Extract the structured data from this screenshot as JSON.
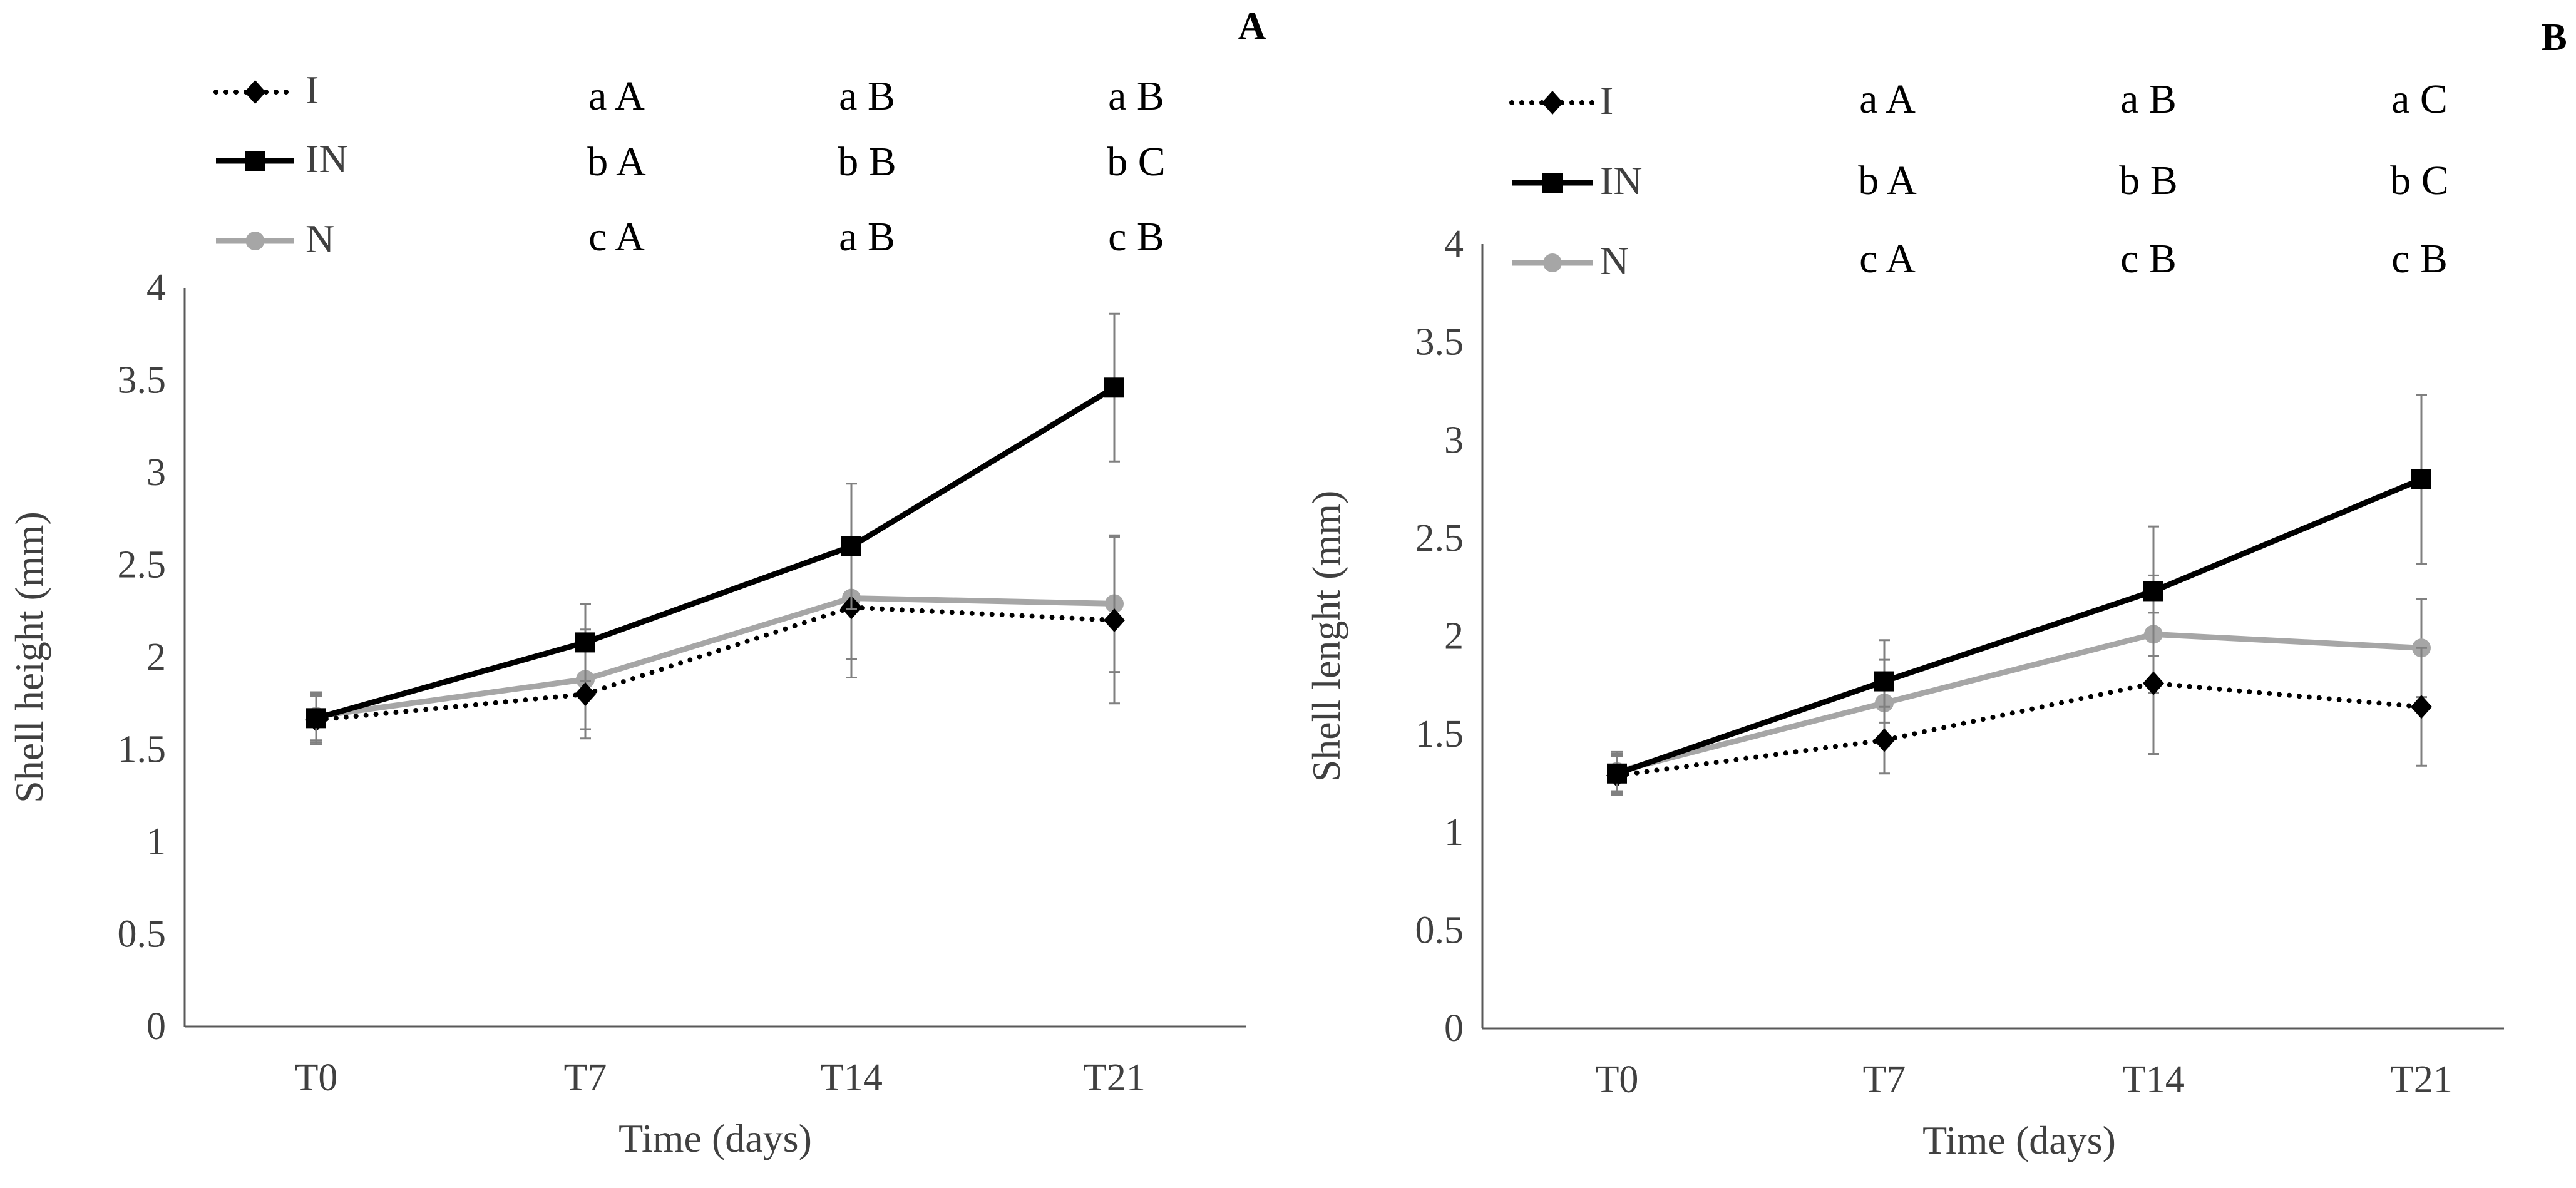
{
  "colors": {
    "I": "#000000",
    "IN": "#000000",
    "N": "#a6a6a6",
    "axis": "#595959",
    "text": "#404040",
    "error_bar": "#808080"
  },
  "chart_data": [
    {
      "type": "line",
      "panel_label": "A",
      "xlabel": "Time (days)",
      "ylabel": "Shell height (mm)",
      "categories": [
        "T0",
        "T7",
        "T14",
        "T21"
      ],
      "ylim": [
        0,
        4
      ],
      "y_ticks": [
        "0",
        "0.5",
        "1",
        "1.5",
        "2",
        "2.5",
        "3",
        "3.5",
        "4"
      ],
      "grid": false,
      "legend_position": "top-left",
      "series": [
        {
          "name": "I",
          "line_style": "dotted",
          "marker": "diamond",
          "values": [
            1.66,
            1.8,
            2.27,
            2.2
          ],
          "errors": [
            0.13,
            0.24,
            0.38,
            0.45
          ],
          "significance": [
            "a A",
            "a B",
            "a B"
          ]
        },
        {
          "name": "IN",
          "line_style": "solid",
          "marker": "square",
          "values": [
            1.67,
            2.08,
            2.6,
            3.46
          ],
          "errors": [
            0.13,
            0.21,
            0.34,
            0.4
          ],
          "significance": [
            "b A",
            "b B",
            "b C"
          ]
        },
        {
          "name": "N",
          "line_style": "solid",
          "marker": "circle",
          "values": [
            1.68,
            1.88,
            2.32,
            2.29
          ],
          "errors": [
            0.13,
            0.27,
            0.33,
            0.37
          ],
          "significance": [
            "c A",
            "a B",
            "c B"
          ]
        }
      ]
    },
    {
      "type": "line",
      "panel_label": "B",
      "xlabel": "Time (days)",
      "ylabel": "Shell lenght (mm)",
      "categories": [
        "T0",
        "T7",
        "T14",
        "T21"
      ],
      "ylim": [
        0,
        4
      ],
      "y_ticks": [
        "0",
        "0.5",
        "1",
        "1.5",
        "2",
        "2.5",
        "3",
        "3.5",
        "4"
      ],
      "grid": false,
      "legend_position": "top-left",
      "series": [
        {
          "name": "I",
          "line_style": "dotted",
          "marker": "diamond",
          "values": [
            1.29,
            1.47,
            1.76,
            1.64
          ],
          "errors": [
            0.1,
            0.17,
            0.36,
            0.3
          ],
          "significance": [
            "a A",
            "a B",
            "a C"
          ]
        },
        {
          "name": "IN",
          "line_style": "solid",
          "marker": "square",
          "values": [
            1.3,
            1.77,
            2.23,
            2.8
          ],
          "errors": [
            0.1,
            0.21,
            0.33,
            0.43
          ],
          "significance": [
            "b A",
            "b B",
            "b C"
          ]
        },
        {
          "name": "N",
          "line_style": "solid",
          "marker": "circle",
          "values": [
            1.31,
            1.66,
            2.01,
            1.94
          ],
          "errors": [
            0.1,
            0.22,
            0.3,
            0.25
          ],
          "significance": [
            "c A",
            "c B",
            "c B"
          ]
        }
      ]
    }
  ]
}
